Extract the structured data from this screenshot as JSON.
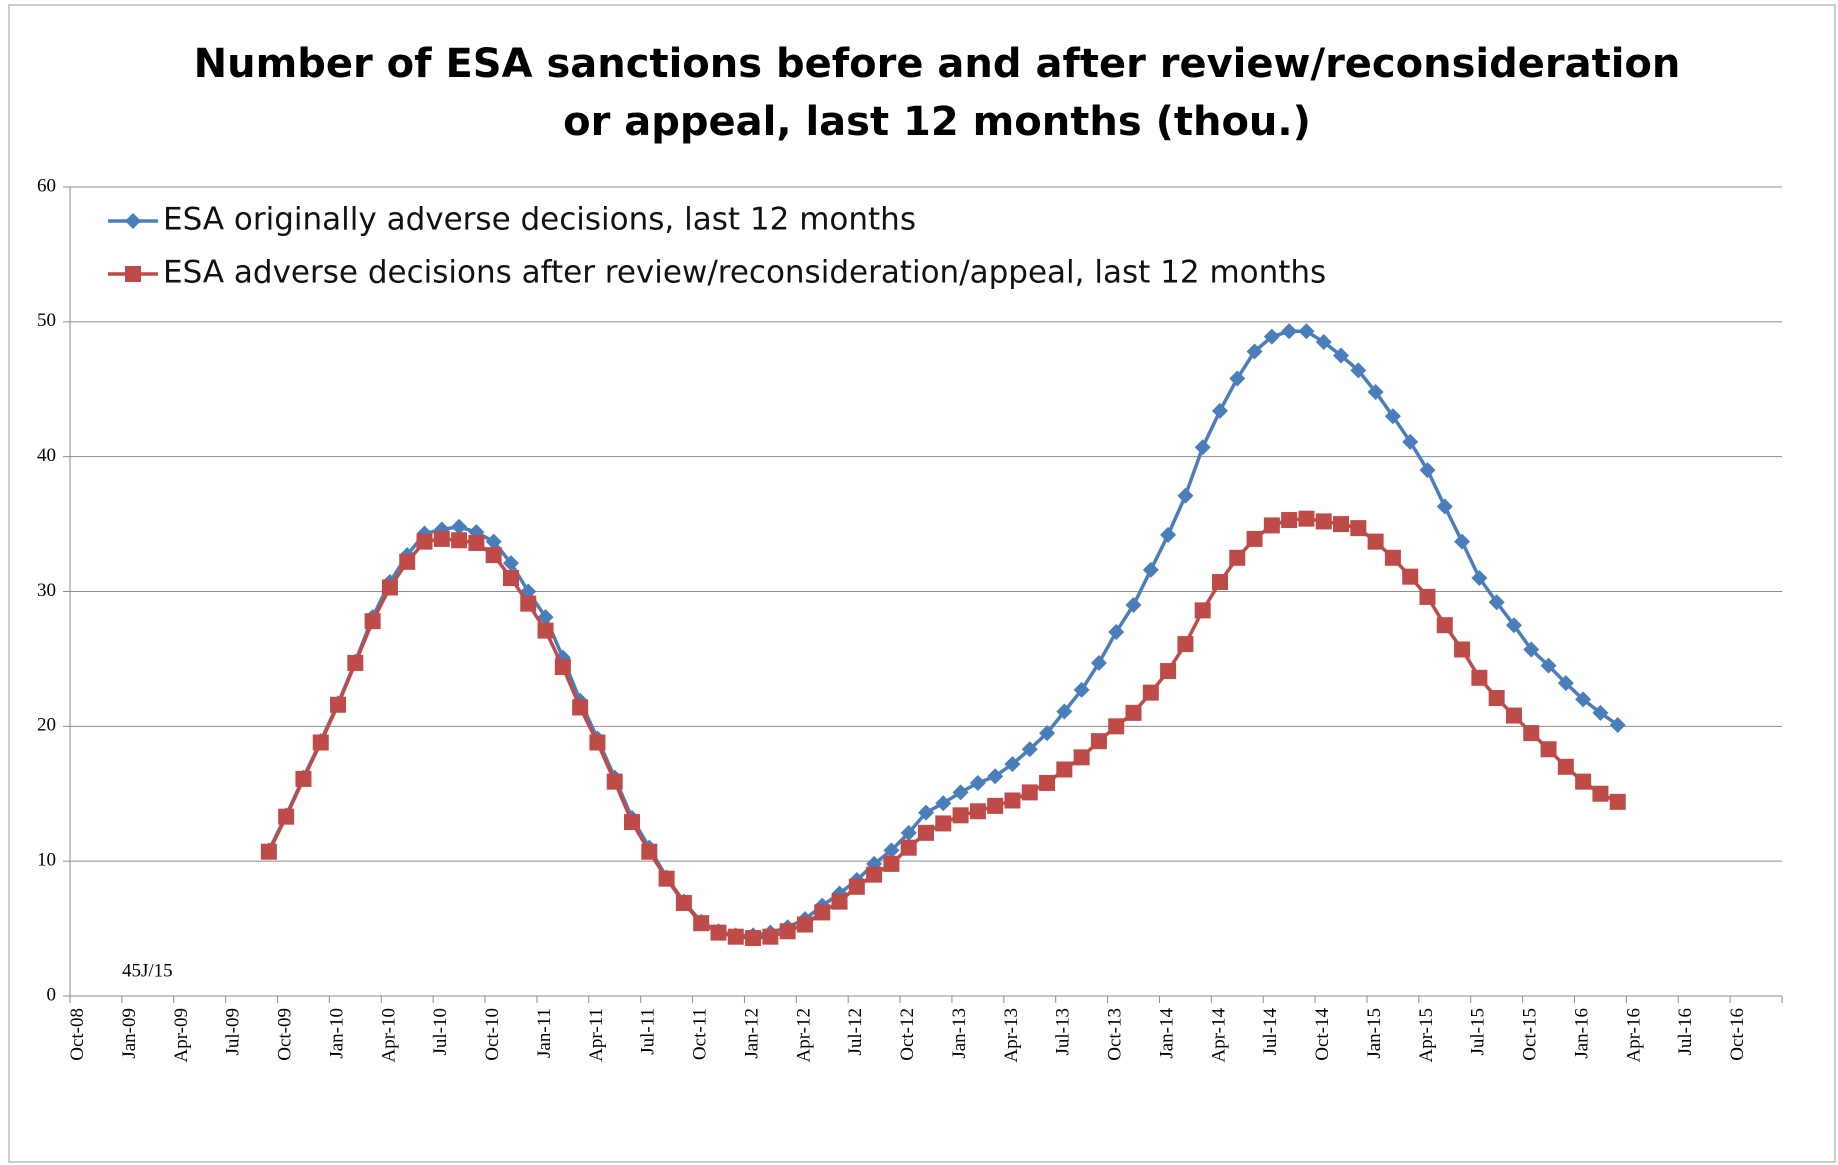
{
  "chart_data": {
    "type": "line",
    "title": [
      "Number of ESA sanctions before and after review/reconsideration",
      "or appeal, last 12 months (thou.)"
    ],
    "annotation": "45J/15",
    "categories": [
      "Oct-08",
      null,
      null,
      "Jan-09",
      null,
      null,
      "Apr-09",
      null,
      null,
      "Jul-09",
      null,
      null,
      "Oct-09",
      null,
      null,
      "Jan-10",
      null,
      null,
      "Apr-10",
      null,
      null,
      "Jul-10",
      null,
      null,
      "Oct-10",
      null,
      null,
      "Jan-11",
      null,
      null,
      "Apr-11",
      null,
      null,
      "Jul-11",
      null,
      null,
      "Oct-11",
      null,
      null,
      "Jan-12",
      null,
      null,
      "Apr-12",
      null,
      null,
      "Jul-12",
      null,
      null,
      "Oct-12",
      null,
      null,
      "Jan-13",
      null,
      null,
      "Apr-13",
      null,
      null,
      "Jul-13",
      null,
      null,
      "Oct-13",
      null,
      null,
      "Jan-14",
      null,
      null,
      "Apr-14",
      null,
      null,
      "Jul-14",
      null,
      null,
      "Oct-14",
      null,
      null,
      "Jan-15",
      null,
      null,
      "Apr-15",
      null,
      null,
      "Jul-15",
      null,
      null,
      "Oct-15",
      null,
      null,
      "Jan-16",
      null,
      null,
      "Apr-16",
      null,
      null,
      "Jul-16",
      null,
      null,
      "Oct-16",
      null,
      null
    ],
    "series": [
      {
        "name": "ESA originally adverse decisions, last 12 months",
        "color": "#4a7ebb",
        "marker": "diamond",
        "values": [
          null,
          null,
          null,
          null,
          null,
          null,
          null,
          null,
          null,
          null,
          null,
          10.8,
          13.4,
          16.2,
          18.9,
          21.7,
          24.8,
          28.1,
          30.7,
          32.7,
          34.3,
          34.6,
          34.8,
          34.4,
          33.7,
          32.1,
          30.0,
          28.1,
          25.1,
          21.9,
          19.1,
          16.2,
          13.2,
          11.0,
          8.8,
          7.0,
          5.5,
          4.8,
          4.5,
          4.5,
          4.7,
          5.1,
          5.7,
          6.7,
          7.6,
          8.6,
          9.8,
          10.8,
          12.1,
          13.6,
          14.3,
          15.1,
          15.8,
          16.3,
          17.2,
          18.3,
          19.5,
          21.1,
          22.7,
          24.7,
          27.0,
          29.0,
          31.6,
          34.2,
          37.1,
          40.7,
          43.4,
          45.8,
          47.8,
          48.9,
          49.3,
          49.3,
          48.5,
          47.5,
          46.4,
          44.8,
          43.0,
          41.1,
          39.0,
          36.3,
          33.7,
          31.0,
          29.2,
          27.5,
          25.7,
          24.5,
          23.2,
          22.0,
          21.0,
          20.1,
          null,
          null,
          null,
          null,
          null,
          null,
          null,
          null,
          null
        ]
      },
      {
        "name": "ESA adverse decisions after review/reconsideration/appeal, last 12 months",
        "color": "#be4b48",
        "marker": "square",
        "values": [
          null,
          null,
          null,
          null,
          null,
          null,
          null,
          null,
          null,
          null,
          null,
          10.7,
          13.3,
          16.1,
          18.8,
          21.6,
          24.7,
          27.8,
          30.3,
          32.2,
          33.7,
          33.9,
          33.8,
          33.6,
          32.7,
          31.0,
          29.1,
          27.1,
          24.4,
          21.4,
          18.8,
          15.9,
          12.9,
          10.7,
          8.7,
          6.9,
          5.4,
          4.7,
          4.4,
          4.3,
          4.4,
          4.8,
          5.3,
          6.2,
          7.0,
          8.1,
          9.0,
          9.8,
          11.0,
          12.1,
          12.8,
          13.4,
          13.7,
          14.1,
          14.5,
          15.1,
          15.8,
          16.8,
          17.7,
          18.9,
          20.0,
          21.0,
          22.5,
          24.1,
          26.1,
          28.6,
          30.7,
          32.5,
          33.9,
          34.9,
          35.3,
          35.4,
          35.2,
          35.0,
          34.7,
          33.7,
          32.5,
          31.1,
          29.6,
          27.5,
          25.7,
          23.6,
          22.1,
          20.8,
          19.5,
          18.3,
          17.0,
          15.9,
          15.0,
          14.4,
          null,
          null,
          null,
          null,
          null,
          null,
          null,
          null,
          null
        ]
      }
    ],
    "ylim": [
      0,
      60
    ],
    "yticks": [
      0,
      10,
      20,
      30,
      40,
      50,
      60
    ],
    "grid": true
  }
}
